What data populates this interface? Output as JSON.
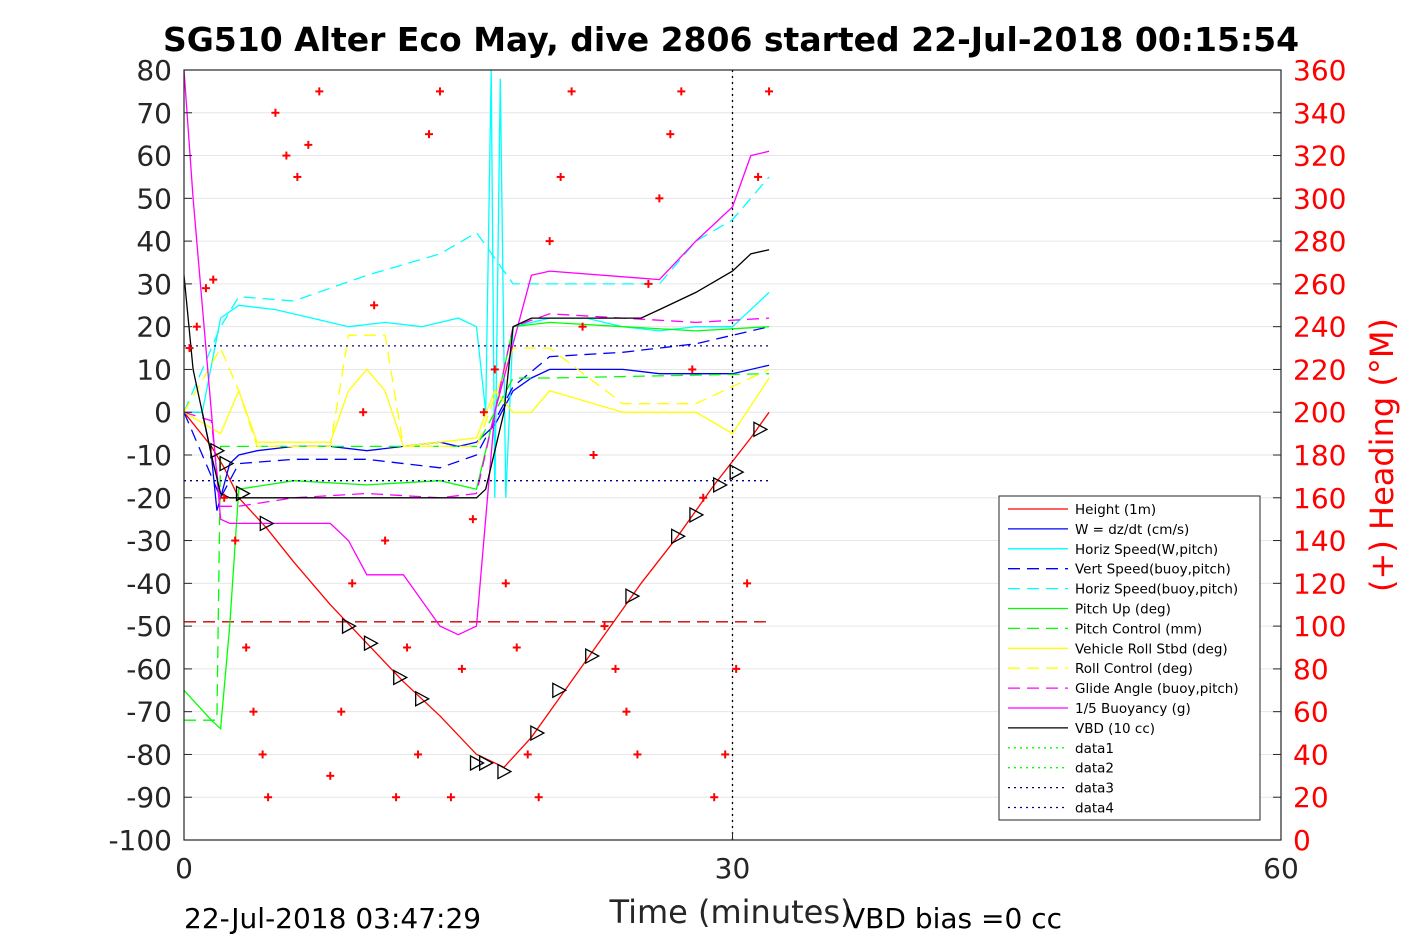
{
  "chart_data": {
    "type": "line",
    "title": "SG510 Alter Eco May, dive 2806 started 22-Jul-2018 00:15:54",
    "xlabel": "Time (minutes)",
    "ylabel_right": "(+) Heading (°M)",
    "xlim": [
      0,
      60
    ],
    "ylim": [
      -100,
      80
    ],
    "ylim_right": [
      0,
      360
    ],
    "x_ticks": [
      "0",
      "30",
      "60"
    ],
    "y_ticks": [
      "80",
      "70",
      "60",
      "50",
      "40",
      "30",
      "20",
      "10",
      "0",
      "-10",
      "-20",
      "-30",
      "-40",
      "-50",
      "-60",
      "-70",
      "-80",
      "-90",
      "-100"
    ],
    "y_ticks_right": [
      "360",
      "340",
      "320",
      "300",
      "280",
      "260",
      "240",
      "220",
      "200",
      "180",
      "160",
      "140",
      "120",
      "100",
      "80",
      "60",
      "40",
      "20",
      "0"
    ],
    "grid": true,
    "legend_position": "lower-right",
    "footer_left": "22-Jul-2018 03:47:29",
    "footer_right": "VBD bias =0 cc",
    "colors": {
      "height": "#ff0000",
      "w": "#0000ff",
      "horiz": "#00ffff",
      "pitch": "#00ff00",
      "roll": "#ffff00",
      "glide": "#ff00ff",
      "vbd": "#000000",
      "data3": "#00008b"
    },
    "series": [
      {
        "name": "Height (1m)",
        "color": "#ff0000",
        "dash": "solid",
        "x": [
          0,
          1.5,
          2.2,
          3,
          4.5,
          6,
          8,
          10,
          12,
          14,
          16,
          17.5,
          19,
          21,
          23,
          25,
          27,
          29,
          31,
          32
        ],
        "y": [
          0,
          -8,
          -13,
          -20,
          -27,
          -35,
          -45,
          -54,
          -63,
          -71,
          -80,
          -83,
          -76,
          -64,
          -52,
          -40,
          -29,
          -17,
          -6,
          0
        ]
      },
      {
        "name": "W = dz/dt (cm/s)",
        "color": "#0000ff",
        "dash": "solid",
        "x": [
          0,
          1,
          1.5,
          1.8,
          2,
          2.5,
          3,
          4,
          6,
          8,
          10,
          12,
          14,
          15,
          16,
          17,
          18,
          19,
          20,
          22,
          24,
          26,
          28,
          30,
          32
        ],
        "y": [
          0,
          0,
          -10,
          -23,
          -20,
          -12,
          -10,
          -9,
          -8,
          -8,
          -9,
          -8,
          -7,
          -8,
          -7,
          -3,
          5,
          8,
          10,
          10,
          10,
          9,
          9,
          9,
          11
        ]
      },
      {
        "name": "Horiz Speed(W,pitch)",
        "color": "#00ffff",
        "dash": "solid",
        "x": [
          0,
          1,
          2,
          3,
          5,
          7,
          9,
          11,
          13,
          15,
          16,
          16.5,
          16.8,
          17,
          17.3,
          17.6,
          18,
          20,
          22,
          24,
          26,
          28,
          30,
          32
        ],
        "y": [
          0,
          0,
          22,
          25,
          24,
          22,
          20,
          21,
          20,
          22,
          20,
          0,
          80,
          -20,
          78,
          -20,
          20,
          22,
          22,
          20,
          19,
          20,
          20,
          28
        ]
      },
      {
        "name": "Vert Speed(buoy,pitch)",
        "color": "#0000ff",
        "dash": "dash",
        "x": [
          0,
          2,
          3,
          6,
          10,
          14,
          16,
          18,
          20,
          24,
          28,
          32
        ],
        "y": [
          0,
          -20,
          -12,
          -11,
          -11,
          -13,
          -10,
          6,
          13,
          14,
          16,
          20
        ]
      },
      {
        "name": "Horiz Speed(buoy,pitch)",
        "color": "#00ffff",
        "dash": "dash",
        "x": [
          0,
          2,
          3,
          6,
          10,
          14,
          16,
          18,
          22,
          26,
          28,
          30,
          32
        ],
        "y": [
          0,
          20,
          27,
          26,
          32,
          37,
          42,
          30,
          30,
          30,
          40,
          45,
          55
        ]
      },
      {
        "name": "Pitch Up (deg)",
        "color": "#00ff00",
        "dash": "solid",
        "x": [
          0,
          1.5,
          2,
          2.5,
          3,
          6,
          10,
          14,
          16,
          17,
          18,
          20,
          24,
          28,
          32
        ],
        "y": [
          -65,
          -72,
          -74,
          -50,
          -18,
          -16,
          -17,
          -16,
          -18,
          0,
          20,
          21,
          20,
          19,
          20
        ]
      },
      {
        "name": "Pitch Control (mm)",
        "color": "#00ff00",
        "dash": "dash",
        "x": [
          0,
          1.8,
          2,
          16,
          17,
          18,
          20,
          32
        ],
        "y": [
          -72,
          -72,
          -8,
          -8,
          0,
          8,
          8,
          9
        ]
      },
      {
        "name": "Vehicle Roll Stbd (deg)",
        "color": "#ffff00",
        "dash": "solid",
        "x": [
          0,
          2,
          3,
          4,
          8,
          9,
          10,
          11,
          12,
          16,
          17,
          18,
          19,
          20,
          24,
          28,
          30,
          32
        ],
        "y": [
          0,
          -5,
          5,
          -7,
          -7,
          5,
          10,
          5,
          -8,
          -6,
          5,
          0,
          0,
          5,
          0,
          0,
          -5,
          8
        ]
      },
      {
        "name": "Roll Control (deg)",
        "color": "#ffff00",
        "dash": "dash",
        "x": [
          0,
          2,
          3,
          4,
          8,
          9,
          11,
          12,
          16,
          18,
          20,
          24,
          28,
          32
        ],
        "y": [
          0,
          15,
          5,
          -8,
          -8,
          18,
          18,
          -8,
          -8,
          15,
          15,
          2,
          2,
          10
        ]
      },
      {
        "name": "Glide Angle (buoy,pitch)",
        "color": "#ff00ff",
        "dash": "dash",
        "x": [
          0,
          1.5,
          2,
          3,
          6,
          10,
          14,
          16,
          17,
          18,
          20,
          24,
          28,
          32
        ],
        "y": [
          0,
          -2,
          -22,
          -22,
          -20,
          -19,
          -20,
          -19,
          0,
          20,
          23,
          22,
          21,
          22
        ]
      },
      {
        "name": "1/5 Buoyancy (g)",
        "color": "#ff00ff",
        "dash": "solid",
        "x": [
          0,
          0.5,
          1.5,
          2,
          2.5,
          3,
          8,
          9,
          10,
          11,
          12,
          14,
          15,
          16,
          17,
          19,
          20,
          26,
          28,
          30,
          31,
          32
        ],
        "y": [
          80,
          50,
          0,
          -25,
          -26,
          -26,
          -26,
          -30,
          -38,
          -38,
          -38,
          -50,
          -52,
          -50,
          0,
          32,
          33,
          31,
          40,
          48,
          60,
          61
        ]
      },
      {
        "name": "VBD (10 cc)",
        "color": "#000000",
        "dash": "solid",
        "x": [
          0,
          0.5,
          1.5,
          2,
          2.5,
          16,
          16.5,
          17.5,
          18,
          19,
          25,
          26,
          28,
          30,
          31,
          32
        ],
        "y": [
          32,
          10,
          -10,
          -19,
          -20,
          -20,
          -18,
          0,
          20,
          22,
          22,
          24,
          28,
          33,
          37,
          38
        ]
      },
      {
        "name": "data1",
        "color": "#00ff00",
        "dash": "dot",
        "x": [],
        "y": []
      },
      {
        "name": "data2",
        "color": "#00ff00",
        "dash": "dot",
        "x": [],
        "y": []
      },
      {
        "name": "data3",
        "color": "#00008b",
        "dash": "dot",
        "x": [
          0,
          32
        ],
        "y": [
          15.5,
          15.5
        ]
      },
      {
        "name": "data4",
        "color": "#00008b",
        "dash": "dot",
        "x": [
          0,
          32
        ],
        "y": [
          -16,
          -16
        ]
      }
    ],
    "extra_lines": [
      {
        "color": "#cc0000",
        "dash": "dash",
        "x": [
          0,
          32
        ],
        "y": [
          -49,
          -49
        ]
      },
      {
        "color": "#000000",
        "dash": "dot",
        "x": [
          30,
          30
        ],
        "y": [
          -100,
          80
        ]
      }
    ],
    "heading_points": {
      "x": [
        0.3,
        0.7,
        1.2,
        1.6,
        2.2,
        2.8,
        3.4,
        3.8,
        4.3,
        4.6,
        5,
        5.6,
        6.2,
        6.8,
        7.4,
        8,
        8.6,
        9.2,
        9.8,
        10.4,
        11,
        11.6,
        12.2,
        12.8,
        13.4,
        14,
        14.6,
        15.2,
        15.8,
        16.4,
        17,
        17.6,
        18.2,
        18.8,
        19.4,
        20,
        20.6,
        21.2,
        21.8,
        22.4,
        23,
        23.6,
        24.2,
        24.8,
        25.4,
        26,
        26.6,
        27.2,
        27.8,
        28.4,
        29,
        29.6,
        30.2,
        30.8,
        31.4,
        32
      ],
      "y": [
        230,
        240,
        258,
        262,
        160,
        140,
        90,
        60,
        40,
        20,
        340,
        320,
        310,
        325,
        350,
        30,
        60,
        120,
        200,
        250,
        140,
        20,
        90,
        40,
        330,
        350,
        20,
        80,
        150,
        200,
        220,
        120,
        90,
        40,
        20,
        280,
        310,
        350,
        240,
        180,
        100,
        80,
        60,
        40,
        260,
        300,
        330,
        350,
        220,
        160,
        20,
        40,
        80,
        120,
        310,
        350
      ]
    },
    "markers": {
      "x": [
        1.8,
        2.3,
        3.2,
        4.5,
        9,
        10.2,
        11.8,
        13,
        16,
        16.5,
        17.5,
        19.3,
        20.5,
        22.3,
        24.5,
        27,
        28,
        29.3,
        30.2,
        31.5
      ],
      "y": [
        -9,
        -12,
        -19,
        -26,
        -50,
        -54,
        -62,
        -67,
        -82,
        -82,
        -84,
        -75,
        -65,
        -57,
        -43,
        -29,
        -24,
        -17,
        -14,
        -4
      ]
    }
  },
  "legend": {
    "items": [
      {
        "label": "Height (1m)",
        "color": "#ff0000",
        "dash": "solid"
      },
      {
        "label": "W = dz/dt (cm/s)",
        "color": "#0000ff",
        "dash": "solid"
      },
      {
        "label": "Horiz Speed(W,pitch)",
        "color": "#00ffff",
        "dash": "solid"
      },
      {
        "label": "Vert Speed(buoy,pitch)",
        "color": "#0000ff",
        "dash": "dash"
      },
      {
        "label": "Horiz Speed(buoy,pitch)",
        "color": "#00ffff",
        "dash": "dash"
      },
      {
        "label": "Pitch Up (deg)",
        "color": "#00ff00",
        "dash": "solid"
      },
      {
        "label": "Pitch Control (mm)",
        "color": "#00ff00",
        "dash": "dash"
      },
      {
        "label": "Vehicle Roll Stbd (deg)",
        "color": "#ffff00",
        "dash": "solid"
      },
      {
        "label": "Roll Control (deg)",
        "color": "#ffff00",
        "dash": "dash"
      },
      {
        "label": "Glide Angle (buoy,pitch)",
        "color": "#ff00ff",
        "dash": "dash"
      },
      {
        "label": "1/5 Buoyancy (g)",
        "color": "#ff00ff",
        "dash": "solid"
      },
      {
        "label": "VBD (10 cc)",
        "color": "#000000",
        "dash": "solid"
      },
      {
        "label": "data1",
        "color": "#00ff00",
        "dash": "dot"
      },
      {
        "label": "data2",
        "color": "#00ff00",
        "dash": "dot"
      },
      {
        "label": "data3",
        "color": "#00008b",
        "dash": "dot"
      },
      {
        "label": "data4",
        "color": "#00008b",
        "dash": "dot"
      }
    ]
  }
}
